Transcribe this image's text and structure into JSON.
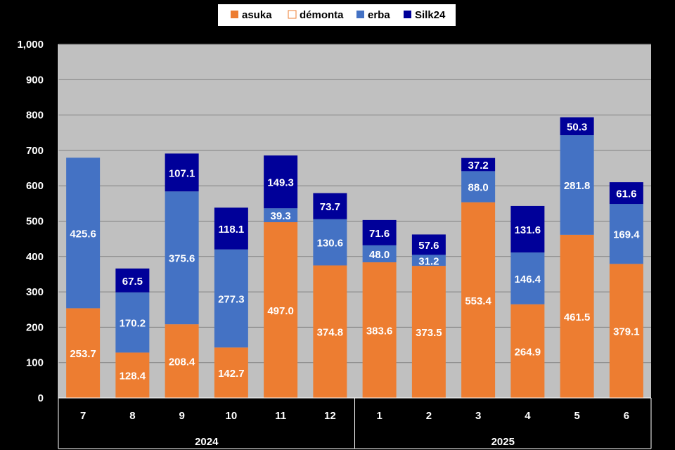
{
  "chart_data": {
    "type": "bar",
    "stacked": true,
    "categories": [
      "7",
      "8",
      "9",
      "10",
      "11",
      "12",
      "1",
      "2",
      "3",
      "4",
      "5",
      "6"
    ],
    "groups": [
      {
        "label": "2024",
        "categories": [
          "7",
          "8",
          "9",
          "10",
          "11",
          "12"
        ]
      },
      {
        "label": "2025",
        "categories": [
          "1",
          "2",
          "3",
          "4",
          "5",
          "6"
        ]
      }
    ],
    "series": [
      {
        "name": "asuka",
        "color": "#ED7D31",
        "values": [
          253.7,
          128.4,
          208.4,
          142.7,
          497.0,
          374.8,
          383.6,
          373.5,
          553.4,
          264.9,
          461.5,
          379.1
        ]
      },
      {
        "name": "démonta",
        "color": "#FFFFFF",
        "values": [
          0,
          0,
          0,
          0,
          0,
          0,
          0,
          0,
          0,
          0,
          0,
          0
        ]
      },
      {
        "name": "erba",
        "color": "#4472C4",
        "values": [
          425.6,
          170.2,
          375.6,
          277.3,
          39.3,
          130.6,
          48.0,
          31.2,
          88.0,
          146.4,
          281.8,
          169.4
        ]
      },
      {
        "name": "Silk24",
        "color": "#000099",
        "values": [
          0,
          67.5,
          107.1,
          118.1,
          149.3,
          73.7,
          71.6,
          57.6,
          37.2,
          131.6,
          50.3,
          61.6
        ]
      }
    ],
    "ylim": [
      0,
      1000
    ],
    "yticks": [
      "0",
      "100",
      "200",
      "300",
      "400",
      "500",
      "600",
      "700",
      "800",
      "900",
      "1,000"
    ],
    "ytick_values": [
      0,
      100,
      200,
      300,
      400,
      500,
      600,
      700,
      800,
      900,
      1000
    ],
    "legend_position": "top",
    "grid": true,
    "plot_background": "#C0C0C0",
    "title": "",
    "xlabel": "",
    "ylabel": ""
  }
}
